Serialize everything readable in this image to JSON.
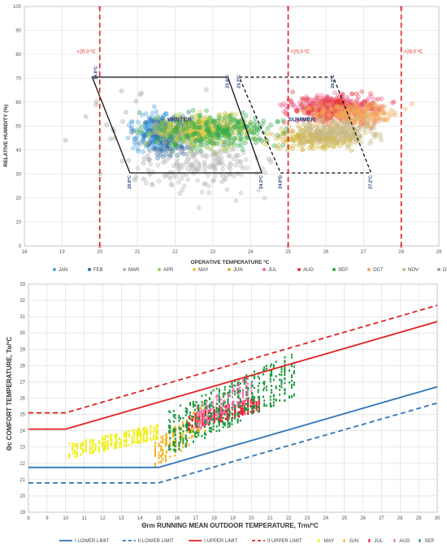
{
  "chart_data": [
    {
      "type": "scatter",
      "xlabel": "OPERATIVE TEMPERATURE  ºC",
      "ylabel": "RELATIVE HUMIDITY (%)",
      "xlim": [
        18,
        29
      ],
      "ylim": [
        0,
        100
      ],
      "x_ticks": [
        "18",
        "19",
        "20",
        "21",
        "22",
        "23",
        "24",
        "25",
        "26",
        "27",
        "28",
        "29"
      ],
      "y_ticks": [
        "0",
        "10",
        "20",
        "30",
        "40",
        "50",
        "60",
        "70",
        "80",
        "90",
        "100"
      ],
      "grid": true,
      "legend_position": "bottom",
      "limit_lines": [
        {
          "label": "<20.0 ºC",
          "x": 20.0
        },
        {
          "label": ">25.0 ºC",
          "x": 25.0
        },
        {
          "label": ">28.0 ºC",
          "x": 28.0
        }
      ],
      "zones": [
        {
          "name": "WINTER",
          "style": "solid",
          "corners": [
            [
              19.8,
              70.5
            ],
            [
              23.4,
              70.5
            ],
            [
              24.3,
              30.5
            ],
            [
              20.8,
              30.5
            ]
          ]
        },
        {
          "name": "SUMMER",
          "style": "dashed",
          "corners": [
            [
              23.7,
              70.5
            ],
            [
              26.2,
              70.5
            ],
            [
              27.2,
              30.5
            ],
            [
              24.8,
              30.5
            ]
          ]
        }
      ],
      "corner_labels": [
        "19.8ºC",
        "23.4ºC",
        "23.7ºC",
        "26.2ºC",
        "20.8ºC",
        "24.3ºC",
        "24.8ºC",
        "27.2ºC"
      ],
      "series": [
        {
          "name": "JAN",
          "color": "#4aa3df",
          "x_range": [
            20.5,
            22.5
          ],
          "y_range": [
            35,
            60
          ]
        },
        {
          "name": "FEB",
          "color": "#2e6fb0",
          "x_range": [
            20.8,
            22.8
          ],
          "y_range": [
            34,
            58
          ]
        },
        {
          "name": "MAR",
          "color": "#b5b5b5",
          "x_range": [
            20.5,
            25.0
          ],
          "y_range": [
            15,
            55
          ]
        },
        {
          "name": "APR",
          "color": "#8fd14f",
          "x_range": [
            20.5,
            24.5
          ],
          "y_range": [
            38,
            58
          ]
        },
        {
          "name": "MAY",
          "color": "#e5c84a",
          "x_range": [
            21.0,
            24.5
          ],
          "y_range": [
            40,
            58
          ]
        },
        {
          "name": "JUN",
          "color": "#d2b440",
          "x_range": [
            24.0,
            27.5
          ],
          "y_range": [
            38,
            52
          ]
        },
        {
          "name": "JUL",
          "color": "#f06aa0",
          "x_range": [
            24.5,
            28.0
          ],
          "y_range": [
            52,
            65
          ]
        },
        {
          "name": "AUG",
          "color": "#e83a3a",
          "x_range": [
            24.5,
            28.0
          ],
          "y_range": [
            48,
            66
          ]
        },
        {
          "name": "SEP",
          "color": "#2eaa4a",
          "x_range": [
            21.0,
            25.5
          ],
          "y_range": [
            38,
            58
          ]
        },
        {
          "name": "OCT",
          "color": "#f3a55a",
          "x_range": [
            25.0,
            28.5
          ],
          "y_range": [
            48,
            62
          ]
        },
        {
          "name": "NOV",
          "color": "#c9b98a",
          "x_range": [
            24.5,
            28.0
          ],
          "y_range": [
            40,
            56
          ]
        },
        {
          "name": "DEC",
          "color": "#a0a0a0",
          "x_range": [
            18.5,
            23.5
          ],
          "y_range": [
            18,
            75
          ]
        }
      ],
      "zone_labels": {
        "winter": "WINTER",
        "summer": "SUMMER"
      }
    },
    {
      "type": "scatter",
      "xlabel": "Θrm RUNNING MEAN OUTDOOR TEMPERATURE, Trm/ºC",
      "ylabel": "Θc COMFORT TEMPERATURE, To/ºC",
      "xlim": [
        8,
        30
      ],
      "ylim": [
        19,
        33
      ],
      "x_ticks": [
        "8",
        "9",
        "10",
        "11",
        "12",
        "13",
        "14",
        "15",
        "16",
        "17",
        "18",
        "19",
        "20",
        "21",
        "22",
        "23",
        "24",
        "25",
        "26",
        "27",
        "28",
        "29",
        "30"
      ],
      "y_ticks": [
        "19",
        "20",
        "21",
        "22",
        "23",
        "24",
        "25",
        "26",
        "27",
        "28",
        "29",
        "30",
        "31",
        "32",
        "33"
      ],
      "grid": true,
      "legend_position": "bottom",
      "limit_series": [
        {
          "name": "I LOWER LIMIT",
          "color": "#2e75b6",
          "style": "solid",
          "points": [
            [
              8,
              21.75
            ],
            [
              15,
              21.75
            ],
            [
              30,
              26.7
            ]
          ]
        },
        {
          "name": "II LOWER LIMIT",
          "color": "#2e75b6",
          "style": "dashed",
          "points": [
            [
              8,
              20.8
            ],
            [
              15,
              20.8
            ],
            [
              30,
              25.7
            ]
          ]
        },
        {
          "name": "I UPPER LIMIT",
          "color": "#e02020",
          "style": "solid",
          "points": [
            [
              8,
              24.1
            ],
            [
              10,
              24.1
            ],
            [
              30,
              30.7
            ]
          ]
        },
        {
          "name": "II UPPER LIMIT",
          "color": "#e02020",
          "style": "dashed",
          "points": [
            [
              8,
              25.1
            ],
            [
              10,
              25.1
            ],
            [
              30,
              31.7
            ]
          ]
        }
      ],
      "series": [
        {
          "name": "MAY",
          "color": "#f2ef1c",
          "x_range": [
            10.2,
            15.0
          ],
          "y_range": [
            22.3,
            24.3
          ]
        },
        {
          "name": "JUN",
          "color": "#f5b31f",
          "x_range": [
            14.8,
            17.5
          ],
          "y_range": [
            21.5,
            25.5
          ]
        },
        {
          "name": "JUL",
          "color": "#e8192c",
          "x_range": [
            16.5,
            20.5
          ],
          "y_range": [
            24.0,
            26.0
          ]
        },
        {
          "name": "AUG",
          "color": "#ef6fb5",
          "x_range": [
            17.0,
            20.0
          ],
          "y_range": [
            24.0,
            27.3
          ]
        },
        {
          "name": "SEP",
          "color": "#1a9a3c",
          "x_range": [
            15.5,
            22.3
          ],
          "y_range": [
            22.5,
            28.5
          ]
        }
      ]
    }
  ]
}
